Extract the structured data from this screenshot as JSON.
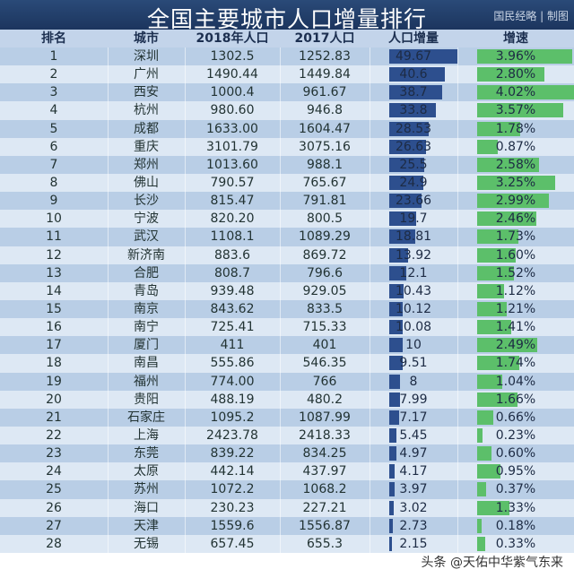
{
  "title": "全国主要城市人口增量排行",
  "credit": "国民经略 | 制图",
  "footer": "头条 @天佑中华紫气东来",
  "colors": {
    "title_bg": "#1c355e",
    "increase_bar": "#2d4f8e",
    "speed_bar": "#5cbf6a"
  },
  "chart_data": {
    "type": "table",
    "title": "全国主要城市人口增量排行",
    "columns": [
      "排名",
      "城市",
      "2018年人口",
      "2017人口",
      "人口增量",
      "增速"
    ],
    "rows": [
      [
        "1",
        "深圳",
        "1302.5",
        "1252.83",
        "49.67",
        "3.96%"
      ],
      [
        "2",
        "广州",
        "1490.44",
        "1449.84",
        "40.6",
        "2.80%"
      ],
      [
        "3",
        "西安",
        "1000.4",
        "961.67",
        "38.7",
        "4.02%"
      ],
      [
        "4",
        "杭州",
        "980.60",
        "946.8",
        "33.8",
        "3.57%"
      ],
      [
        "5",
        "成都",
        "1633.00",
        "1604.47",
        "28.53",
        "1.78%"
      ],
      [
        "6",
        "重庆",
        "3101.79",
        "3075.16",
        "26.63",
        "0.87%"
      ],
      [
        "7",
        "郑州",
        "1013.60",
        "988.1",
        "25.5",
        "2.58%"
      ],
      [
        "8",
        "佛山",
        "790.57",
        "765.67",
        "24.9",
        "3.25%"
      ],
      [
        "9",
        "长沙",
        "815.47",
        "791.81",
        "23.66",
        "2.99%"
      ],
      [
        "10",
        "宁波",
        "820.20",
        "800.5",
        "19.7",
        "2.46%"
      ],
      [
        "11",
        "武汉",
        "1108.1",
        "1089.29",
        "18.81",
        "1.73%"
      ],
      [
        "12",
        "新济南",
        "883.6",
        "869.72",
        "13.92",
        "1.60%"
      ],
      [
        "13",
        "合肥",
        "808.7",
        "796.6",
        "12.1",
        "1.52%"
      ],
      [
        "14",
        "青岛",
        "939.48",
        "929.05",
        "10.43",
        "1.12%"
      ],
      [
        "15",
        "南京",
        "843.62",
        "833.5",
        "10.12",
        "1.21%"
      ],
      [
        "16",
        "南宁",
        "725.41",
        "715.33",
        "10.08",
        "1.41%"
      ],
      [
        "17",
        "厦门",
        "411",
        "401",
        "10",
        "2.49%"
      ],
      [
        "18",
        "南昌",
        "555.86",
        "546.35",
        "9.51",
        "1.74%"
      ],
      [
        "19",
        "福州",
        "774.00",
        "766",
        "8",
        "1.04%"
      ],
      [
        "20",
        "贵阳",
        "488.19",
        "480.2",
        "7.99",
        "1.66%"
      ],
      [
        "21",
        "石家庄",
        "1095.2",
        "1087.99",
        "7.17",
        "0.66%"
      ],
      [
        "22",
        "上海",
        "2423.78",
        "2418.33",
        "5.45",
        "0.23%"
      ],
      [
        "23",
        "东莞",
        "839.22",
        "834.25",
        "4.97",
        "0.60%"
      ],
      [
        "24",
        "太原",
        "442.14",
        "437.97",
        "4.17",
        "0.95%"
      ],
      [
        "25",
        "苏州",
        "1072.2",
        "1068.2",
        "3.97",
        "0.37%"
      ],
      [
        "26",
        "海口",
        "230.23",
        "227.21",
        "3.02",
        "1.33%"
      ],
      [
        "27",
        "天津",
        "1559.6",
        "1556.87",
        "2.73",
        "0.18%"
      ],
      [
        "28",
        "无锡",
        "657.45",
        "655.3",
        "2.15",
        "0.33%"
      ]
    ]
  }
}
